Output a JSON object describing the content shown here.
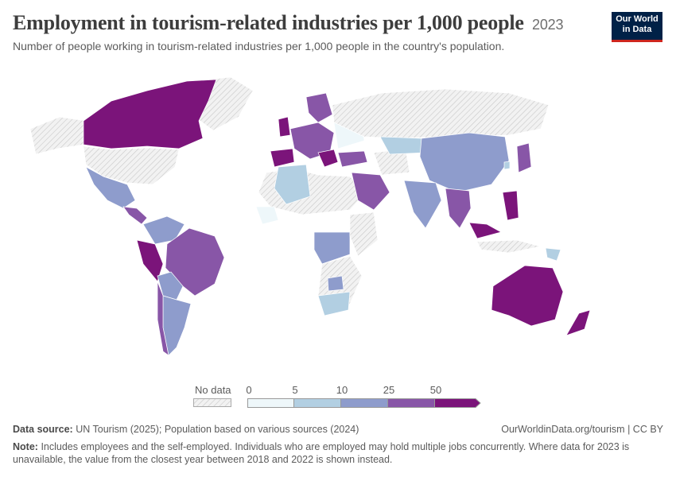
{
  "header": {
    "title": "Employment in tourism-related industries per 1,000 people",
    "year": "2023",
    "subtitle": "Number of people working in tourism-related industries per 1,000 people in the country's population."
  },
  "logo": {
    "line1": "Our World",
    "line2": "in Data"
  },
  "legend": {
    "nodata_label": "No data",
    "ticks": [
      "0",
      "5",
      "10",
      "25",
      "50"
    ],
    "colors": [
      "#eef7fa",
      "#b2cfe2",
      "#8e9ccc",
      "#8856a7",
      "#7b147a"
    ],
    "nodata_color": "#e0e0e0"
  },
  "footer": {
    "source_label": "Data source:",
    "source_text": "UN Tourism (2025); Population based on various sources (2024)",
    "url": "OurWorldinData.org/tourism | CC BY",
    "note_label": "Note:",
    "note_text": "Includes employees and the self-employed. Individuals who are employed may hold multiple jobs concurrently. Where data for 2023 is unavailable, the value from the closest year between 2018 and 2022 is shown instead."
  }
}
